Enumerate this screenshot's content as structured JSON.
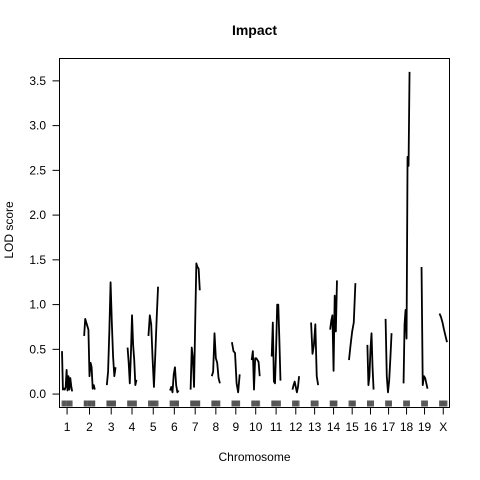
{
  "chart_data": {
    "type": "line",
    "title": "Impact",
    "xlabel": "Chromosome",
    "ylabel": "LOD score",
    "ylim": [
      -0.15,
      3.75
    ],
    "grid": false,
    "legend": "none",
    "line_color": "#000000",
    "y_ticks": [
      0.0,
      0.5,
      1.0,
      1.5,
      2.0,
      2.5,
      3.0,
      3.5
    ],
    "y_tick_labels": [
      "0.0",
      "0.5",
      "1.0",
      "1.5",
      "2.0",
      "2.5",
      "3.0",
      "3.5"
    ],
    "x_tick_labels": [
      "1",
      "2",
      "3",
      "4",
      "5",
      "6",
      "7",
      "8",
      "9",
      "10",
      "11",
      "12",
      "13",
      "14",
      "15",
      "16",
      "17",
      "18",
      "19",
      "X"
    ],
    "chromosomes": [
      {
        "name": "1",
        "length": 95,
        "markers": [
          0,
          5,
          11,
          16,
          21,
          27,
          32,
          37,
          42,
          48,
          53,
          58,
          63,
          69,
          74,
          79,
          84,
          90,
          95
        ],
        "lod": [
          0.48,
          0.05,
          0.06,
          0.05,
          0.08,
          0.27,
          0.04,
          0.2,
          0.05,
          0.18,
          0.09,
          0.03
        ]
      },
      {
        "name": "2",
        "length": 100,
        "markers": [
          0,
          5,
          11,
          16,
          21,
          26,
          32,
          37,
          42,
          47,
          53,
          58,
          63,
          68,
          74,
          79,
          84,
          89,
          95,
          100
        ],
        "lod": [
          0.65,
          0.84,
          0.8,
          0.76,
          0.72,
          0.2,
          0.35,
          0.3,
          0.06,
          0.1,
          0.05
        ]
      },
      {
        "name": "3",
        "length": 82,
        "markers": [
          0,
          5,
          9,
          14,
          18,
          23,
          27,
          32,
          36,
          41,
          46,
          50,
          55,
          59,
          64,
          68,
          73,
          77,
          82
        ],
        "lod": [
          0.1,
          0.25,
          0.7,
          1.25,
          0.8,
          0.42,
          0.2,
          0.3
        ]
      },
      {
        "name": "4",
        "length": 83,
        "markers": [
          0,
          5,
          9,
          14,
          18,
          23,
          28,
          32,
          37,
          41,
          46,
          51,
          55,
          60,
          64,
          69,
          74,
          78,
          83
        ],
        "lod": [
          0.52,
          0.35,
          0.12,
          0.45,
          0.88,
          0.55,
          0.38,
          0.1,
          0.16
        ]
      },
      {
        "name": "5",
        "length": 90,
        "markers": [
          0,
          5,
          10,
          15,
          20,
          25,
          30,
          35,
          40,
          45,
          50,
          55,
          60,
          65,
          70,
          75,
          80,
          85,
          90
        ],
        "lod": [
          0.65,
          0.88,
          0.78,
          0.4,
          0.08,
          0.45,
          0.85,
          1.2
        ]
      },
      {
        "name": "6",
        "length": 80,
        "markers": [
          0,
          5,
          9,
          14,
          18,
          23,
          27,
          32,
          36,
          41,
          45,
          50,
          55,
          59,
          64,
          68,
          73,
          77,
          80
        ],
        "lod": [
          0.04,
          0.08,
          0.02,
          0.22,
          0.3,
          0.1,
          0.02,
          0.04
        ]
      },
      {
        "name": "7",
        "length": 86,
        "markers": [
          0,
          5,
          10,
          14,
          19,
          24,
          29,
          33,
          38,
          43,
          48,
          53,
          57,
          62,
          67,
          72,
          77,
          81,
          86
        ],
        "lod": [
          0.05,
          0.52,
          0.4,
          0.08,
          0.8,
          1.46,
          1.42,
          1.4,
          1.16
        ]
      },
      {
        "name": "8",
        "length": 76,
        "markers": [
          0,
          5,
          9,
          14,
          18,
          23,
          27,
          32,
          36,
          41,
          45,
          50,
          54,
          59,
          63,
          68,
          72,
          76
        ],
        "lod": [
          0.2,
          0.25,
          0.68,
          0.4,
          0.35,
          0.18,
          0.12
        ]
      },
      {
        "name": "9",
        "length": 73,
        "markers": [
          0,
          5,
          9,
          14,
          18,
          22,
          27,
          31,
          36,
          40,
          45,
          49,
          53,
          58,
          62,
          67,
          73
        ],
        "lod": [
          0.58,
          0.48,
          0.46,
          0.12,
          0.02,
          0.22
        ]
      },
      {
        "name": "10",
        "length": 75,
        "markers": [
          0,
          5,
          9,
          13,
          18,
          22,
          27,
          31,
          36,
          40,
          44,
          49,
          53,
          58,
          62,
          67,
          75
        ],
        "lod": [
          0.38,
          0.48,
          0.05,
          0.4,
          0.4,
          0.38,
          0.36,
          0.2
        ]
      },
      {
        "name": "11",
        "length": 82,
        "markers": [
          0,
          5,
          9,
          14,
          18,
          23,
          27,
          32,
          36,
          41,
          46,
          50,
          55,
          59,
          64,
          68,
          73,
          77,
          82
        ],
        "lod": [
          0.42,
          0.8,
          0.14,
          0.12,
          0.5,
          1.0,
          1.0,
          0.6,
          0.15
        ]
      },
      {
        "name": "12",
        "length": 62,
        "markers": [
          0,
          5,
          10,
          15,
          20,
          25,
          30,
          35,
          40,
          45,
          50,
          55,
          62
        ],
        "lod": [
          0.05,
          0.1,
          0.14,
          0.08,
          0.02,
          0.08,
          0.2
        ]
      },
      {
        "name": "13",
        "length": 66,
        "markers": [
          0,
          5,
          9,
          14,
          18,
          23,
          27,
          32,
          37,
          42,
          46,
          51,
          56,
          61,
          66
        ],
        "lod": [
          0.8,
          0.45,
          0.55,
          0.78,
          0.2,
          0.1
        ]
      },
      {
        "name": "14",
        "length": 64,
        "markers": [
          0,
          5,
          9,
          14,
          19,
          24,
          28,
          33,
          38,
          42,
          47,
          52,
          57,
          61,
          64
        ],
        "lod": [
          0.72,
          0.82,
          0.88,
          0.26,
          1.1,
          0.7,
          1.27
        ]
      },
      {
        "name": "15",
        "length": 60,
        "markers": [
          0,
          5,
          10,
          15,
          20,
          25,
          30,
          35,
          40,
          45,
          50,
          55,
          60
        ],
        "lod": [
          0.38,
          0.55,
          0.7,
          0.8,
          1.24
        ]
      },
      {
        "name": "16",
        "length": 58,
        "markers": [
          0,
          5,
          10,
          14,
          19,
          24,
          29,
          34,
          38,
          43,
          48,
          53,
          58
        ],
        "lod": [
          0.55,
          0.1,
          0.2,
          0.5,
          0.68,
          0.3,
          0.05
        ]
      },
      {
        "name": "17",
        "length": 56,
        "markers": [
          0,
          5,
          9,
          14,
          19,
          23,
          28,
          33,
          37,
          42,
          47,
          51,
          56
        ],
        "lod": [
          0.84,
          0.2,
          0.02,
          0.15,
          0.4,
          0.68
        ]
      },
      {
        "name": "18",
        "length": 56,
        "markers": [
          0,
          5,
          9,
          14,
          19,
          23,
          28,
          33,
          37,
          42,
          47,
          51,
          56
        ],
        "lod": [
          0.12,
          0.78,
          0.94,
          0.62,
          2.65,
          2.55,
          3.6
        ]
      },
      {
        "name": "19",
        "length": 56,
        "markers": [
          0,
          5,
          9,
          14,
          19,
          23,
          28,
          33,
          37,
          42,
          47,
          51,
          56
        ],
        "lod": [
          1.42,
          0.1,
          0.2,
          0.18,
          0.12,
          0.06
        ]
      },
      {
        "name": "X",
        "length": 70,
        "markers": [
          0,
          5,
          10,
          15,
          20,
          25,
          30,
          35,
          40,
          45,
          50,
          55,
          60,
          65,
          70
        ],
        "lod": [
          0.9,
          0.86,
          0.8,
          0.72,
          0.65,
          0.58
        ]
      }
    ]
  }
}
